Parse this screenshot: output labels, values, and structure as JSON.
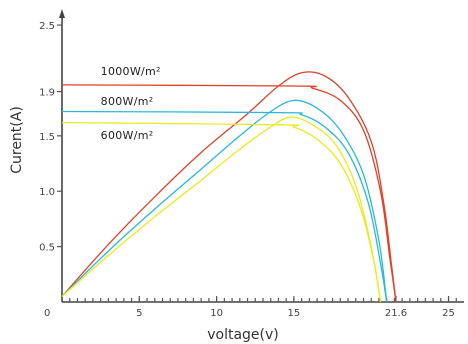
{
  "chart_data": {
    "type": "line",
    "title": "",
    "xlabel": "voltage(v)",
    "ylabel": "Curent(A)",
    "xlim": [
      0,
      26
    ],
    "ylim": [
      0,
      2.6
    ],
    "x_ticks": [
      {
        "value": 0,
        "label": "0"
      },
      {
        "value": 5,
        "label": "5"
      },
      {
        "value": 10,
        "label": "10"
      },
      {
        "value": 15,
        "label": "15"
      },
      {
        "value": 21.6,
        "label": "21.6"
      },
      {
        "value": 25,
        "label": "25"
      }
    ],
    "y_ticks": [
      {
        "value": 0.5,
        "label": "0.5"
      },
      {
        "value": 1.0,
        "label": "1.0"
      },
      {
        "value": 1.5,
        "label": "1.5"
      },
      {
        "value": 1.9,
        "label": "1.9"
      },
      {
        "value": 2.5,
        "label": "2.5"
      }
    ],
    "series": [
      {
        "name": "1000W/m²",
        "color": "#e0412c",
        "iv_points": [
          [
            0,
            1.96
          ],
          [
            15,
            1.95
          ],
          [
            16.2,
            1.93
          ],
          [
            18,
            1.82
          ],
          [
            19.5,
            1.55
          ],
          [
            20.6,
            1.0
          ],
          [
            21.2,
            0.4
          ],
          [
            21.6,
            0.0
          ]
        ],
        "power_points": [
          [
            0,
            0.05
          ],
          [
            3,
            0.52
          ],
          [
            6,
            0.95
          ],
          [
            9,
            1.35
          ],
          [
            12,
            1.7
          ],
          [
            14,
            1.95
          ],
          [
            15.5,
            2.07
          ],
          [
            17,
            2.04
          ],
          [
            18.5,
            1.85
          ],
          [
            20,
            1.45
          ],
          [
            20.8,
            0.9
          ],
          [
            21.3,
            0.35
          ],
          [
            21.6,
            0.0
          ]
        ]
      },
      {
        "name": "800W/m²",
        "color": "#2bb8d8",
        "iv_points": [
          [
            0,
            1.72
          ],
          [
            14,
            1.71
          ],
          [
            15.5,
            1.69
          ],
          [
            17,
            1.58
          ],
          [
            18.5,
            1.35
          ],
          [
            19.8,
            0.9
          ],
          [
            20.6,
            0.35
          ],
          [
            21.0,
            0.0
          ]
        ],
        "power_points": [
          [
            0,
            0.05
          ],
          [
            3,
            0.46
          ],
          [
            6,
            0.84
          ],
          [
            9,
            1.2
          ],
          [
            11.5,
            1.5
          ],
          [
            13.5,
            1.72
          ],
          [
            15,
            1.82
          ],
          [
            16.5,
            1.75
          ],
          [
            18,
            1.55
          ],
          [
            19.5,
            1.15
          ],
          [
            20.5,
            0.55
          ],
          [
            21.0,
            0.0
          ]
        ]
      },
      {
        "name": "600W/m²",
        "color": "#eaea1f",
        "iv_points": [
          [
            0,
            1.62
          ],
          [
            14,
            1.6
          ],
          [
            15,
            1.58
          ],
          [
            16.5,
            1.47
          ],
          [
            18,
            1.25
          ],
          [
            19.3,
            0.85
          ],
          [
            20.2,
            0.35
          ],
          [
            20.6,
            0.0
          ]
        ],
        "power_points": [
          [
            0,
            0.05
          ],
          [
            3,
            0.42
          ],
          [
            6,
            0.77
          ],
          [
            9,
            1.1
          ],
          [
            11.5,
            1.38
          ],
          [
            13.5,
            1.58
          ],
          [
            14.8,
            1.67
          ],
          [
            16.2,
            1.6
          ],
          [
            17.7,
            1.42
          ],
          [
            19,
            1.05
          ],
          [
            20,
            0.5
          ],
          [
            20.6,
            0.0
          ]
        ]
      }
    ],
    "label_positions_data_units": [
      {
        "series": 0,
        "x": 2.5,
        "y": 2.05
      },
      {
        "series": 1,
        "x": 2.5,
        "y": 1.78
      },
      {
        "series": 2,
        "x": 2.5,
        "y": 1.47
      }
    ]
  }
}
